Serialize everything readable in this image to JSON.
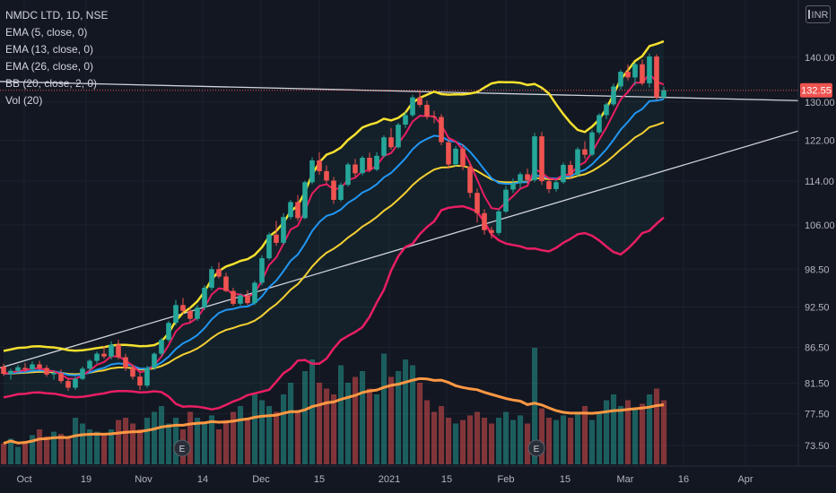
{
  "legend": {
    "symbol": "NMDC LTD, 1D, NSE",
    "ema5": "EMA (5, close, 0)",
    "ema13": "EMA (13, close, 0)",
    "ema26": "EMA (26, close, 0)",
    "bb": "BB (20, close, 2, 0)",
    "vol": "Vol (20)"
  },
  "currency": "INR",
  "colors": {
    "background": "#131722",
    "up": "#26a69a",
    "down": "#ef5350",
    "bb_upper": "#f5e12e",
    "bb_lower": "#e91e63",
    "ema5": "#e91e63",
    "ema13": "#2196f3",
    "ema26": "#f5d033",
    "vol_ma": "#ff9843",
    "trendline": "#d1d4dc",
    "last_price": "#ef5350"
  },
  "chart_data": {
    "type": "candlestick",
    "y_axis": {
      "ticks": [
        140,
        130,
        122,
        114,
        106,
        98.5,
        92.5,
        86.5,
        81.5,
        77.5,
        73.5
      ],
      "tick_labels": [
        "140.00",
        "130.00",
        "122.00",
        "114.00",
        "106.00",
        "98.50",
        "92.50",
        "86.50",
        "81.50",
        "77.50",
        "73.50"
      ],
      "scale": "log"
    },
    "x_axis": {
      "labels": [
        "Oct",
        "19",
        "Nov",
        "14",
        "Dec",
        "15",
        "2021",
        "15",
        "Feb",
        "15",
        "Mar",
        "16",
        "Apr"
      ]
    },
    "last_price": "132.55",
    "earnings_markers": [
      "E",
      "E"
    ],
    "candles": [
      [
        0,
        83.8,
        84.2,
        82.5,
        82.8
      ],
      [
        1,
        82.8,
        83.5,
        82.0,
        83.2
      ],
      [
        2,
        83.2,
        84.0,
        82.9,
        83.7
      ],
      [
        3,
        83.6,
        84.3,
        83.0,
        83.4
      ],
      [
        4,
        83.4,
        84.5,
        83.2,
        84.1
      ],
      [
        5,
        84.1,
        84.6,
        83.3,
        83.6
      ],
      [
        6,
        83.6,
        84.0,
        82.4,
        82.7
      ],
      [
        7,
        82.7,
        83.3,
        82.0,
        82.9
      ],
      [
        8,
        82.9,
        83.4,
        81.5,
        81.8
      ],
      [
        9,
        81.8,
        82.2,
        80.5,
        80.9
      ],
      [
        10,
        80.9,
        82.4,
        80.6,
        82.1
      ],
      [
        11,
        82.1,
        83.8,
        81.9,
        83.5
      ],
      [
        12,
        83.5,
        84.8,
        83.1,
        84.6
      ],
      [
        13,
        84.6,
        85.9,
        84.2,
        85.6
      ],
      [
        14,
        85.6,
        86.7,
        84.9,
        85.2
      ],
      [
        15,
        85.2,
        87.4,
        84.8,
        86.9
      ],
      [
        16,
        86.9,
        87.6,
        84.8,
        85.1
      ],
      [
        17,
        85.1,
        85.6,
        83.2,
        83.6
      ],
      [
        18,
        83.6,
        84.1,
        82.0,
        82.4
      ],
      [
        19,
        82.4,
        82.9,
        80.6,
        81.2
      ],
      [
        20,
        81.2,
        83.9,
        80.9,
        83.6
      ],
      [
        21,
        83.6,
        85.8,
        83.3,
        85.6
      ],
      [
        22,
        85.6,
        87.9,
        85.2,
        87.6
      ],
      [
        23,
        87.6,
        90.4,
        87.3,
        90.1
      ],
      [
        24,
        90.1,
        93.6,
        89.7,
        92.8
      ],
      [
        25,
        92.8,
        93.9,
        91.4,
        91.9
      ],
      [
        26,
        91.9,
        92.4,
        90.2,
        90.7
      ],
      [
        27,
        90.7,
        92.8,
        90.4,
        92.4
      ],
      [
        28,
        92.4,
        95.9,
        92.0,
        95.5
      ],
      [
        29,
        95.5,
        99.0,
        95.1,
        98.5
      ],
      [
        30,
        98.5,
        99.6,
        97.0,
        97.3
      ],
      [
        31,
        97.3,
        97.9,
        94.8,
        95.0
      ],
      [
        32,
        95.0,
        95.5,
        92.7,
        93.0
      ],
      [
        33,
        93.0,
        94.6,
        92.7,
        94.3
      ],
      [
        34,
        94.3,
        95.1,
        92.8,
        93.1
      ],
      [
        35,
        93.1,
        96.6,
        92.8,
        96.3
      ],
      [
        36,
        96.3,
        100.8,
        95.9,
        100.3
      ],
      [
        37,
        100.3,
        104.7,
        100.0,
        104.3
      ],
      [
        38,
        104.3,
        106.7,
        102.4,
        102.9
      ],
      [
        39,
        102.9,
        108.1,
        102.6,
        107.4
      ],
      [
        40,
        107.4,
        110.5,
        107.0,
        110.1
      ],
      [
        41,
        110.1,
        111.4,
        106.7,
        107.2
      ],
      [
        42,
        107.2,
        114.1,
        107.0,
        113.8
      ],
      [
        43,
        113.8,
        118.6,
        113.4,
        118.0
      ],
      [
        44,
        118.0,
        119.6,
        115.2,
        115.9
      ],
      [
        45,
        115.9,
        117.0,
        113.6,
        114.1
      ],
      [
        46,
        114.1,
        114.8,
        109.8,
        110.5
      ],
      [
        47,
        110.5,
        113.7,
        110.2,
        113.3
      ],
      [
        48,
        113.3,
        117.6,
        113.0,
        117.2
      ],
      [
        49,
        117.2,
        118.3,
        114.8,
        115.5
      ],
      [
        50,
        115.5,
        118.9,
        115.1,
        118.5
      ],
      [
        51,
        118.5,
        119.5,
        115.7,
        116.2
      ],
      [
        52,
        116.2,
        119.6,
        115.9,
        118.9
      ],
      [
        53,
        118.9,
        123.0,
        118.5,
        122.6
      ],
      [
        54,
        122.6,
        124.5,
        120.1,
        120.6
      ],
      [
        55,
        120.6,
        125.6,
        120.3,
        125.2
      ],
      [
        56,
        125.2,
        127.9,
        124.5,
        127.2
      ],
      [
        57,
        127.2,
        131.6,
        126.8,
        131.0
      ],
      [
        58,
        131.0,
        132.6,
        128.9,
        129.4
      ],
      [
        59,
        129.4,
        130.3,
        126.3,
        126.9
      ],
      [
        60,
        126.9,
        128.1,
        125.5,
        126.8
      ],
      [
        61,
        126.8,
        127.4,
        121.0,
        121.6
      ],
      [
        62,
        121.6,
        122.3,
        116.4,
        117.2
      ],
      [
        63,
        117.2,
        120.8,
        116.8,
        120.3
      ],
      [
        64,
        120.3,
        121.2,
        116.1,
        116.8
      ],
      [
        65,
        116.8,
        117.4,
        110.9,
        111.8
      ],
      [
        66,
        111.8,
        112.6,
        106.4,
        108.1
      ],
      [
        67,
        108.1,
        108.8,
        104.3,
        105.1
      ],
      [
        68,
        105.1,
        105.7,
        103.6,
        104.6
      ],
      [
        69,
        104.6,
        108.8,
        104.2,
        108.4
      ],
      [
        70,
        108.4,
        113.1,
        108.1,
        112.4
      ],
      [
        71,
        112.4,
        114.5,
        111.8,
        113.6
      ],
      [
        72,
        113.6,
        115.7,
        112.7,
        115.3
      ],
      [
        73,
        115.3,
        116.4,
        113.5,
        114.2
      ],
      [
        74,
        114.2,
        123.5,
        113.8,
        122.8
      ],
      [
        75,
        122.8,
        123.7,
        113.3,
        114.0
      ],
      [
        76,
        114.0,
        114.6,
        111.8,
        112.5
      ],
      [
        77,
        112.5,
        114.2,
        112.0,
        113.8
      ],
      [
        78,
        113.8,
        117.6,
        113.5,
        117.1
      ],
      [
        79,
        117.1,
        117.9,
        114.4,
        115.2
      ],
      [
        80,
        115.2,
        120.6,
        114.9,
        120.2
      ],
      [
        81,
        120.2,
        121.8,
        118.3,
        119.1
      ],
      [
        82,
        119.1,
        124.1,
        118.8,
        123.6
      ],
      [
        83,
        123.6,
        127.6,
        123.2,
        127.2
      ],
      [
        84,
        127.2,
        129.9,
        126.4,
        129.5
      ],
      [
        85,
        129.5,
        134.0,
        129.1,
        133.4
      ],
      [
        86,
        133.4,
        137.2,
        132.7,
        136.7
      ],
      [
        87,
        136.7,
        138.4,
        134.7,
        135.4
      ],
      [
        88,
        135.4,
        138.9,
        133.6,
        138.4
      ],
      [
        89,
        138.4,
        139.5,
        133.6,
        134.1
      ],
      [
        90,
        134.1,
        140.9,
        133.2,
        140.2
      ],
      [
        91,
        140.2,
        140.7,
        130.4,
        131.0
      ],
      [
        92,
        131.0,
        133.4,
        130.6,
        132.55
      ]
    ],
    "volume": [
      18,
      22,
      15,
      20,
      25,
      30,
      24,
      28,
      26,
      22,
      40,
      35,
      30,
      28,
      25,
      30,
      38,
      40,
      35,
      30,
      40,
      45,
      50,
      35,
      40,
      30,
      45,
      40,
      35,
      42,
      30,
      38,
      45,
      50,
      40,
      60,
      55,
      50,
      45,
      60,
      70,
      45,
      80,
      90,
      70,
      65,
      60,
      85,
      70,
      75,
      80,
      65,
      60,
      95,
      75,
      80,
      90,
      85,
      70,
      55,
      45,
      50,
      40,
      35,
      38,
      42,
      45,
      40,
      35,
      40,
      45,
      38,
      42,
      35,
      100,
      48,
      40,
      38,
      42,
      40,
      45,
      50,
      38,
      45,
      55,
      60,
      50,
      55,
      48,
      52,
      60,
      65,
      55
    ],
    "volume_up": [
      false,
      true,
      true,
      false,
      true,
      false,
      false,
      true,
      false,
      false,
      true,
      true,
      true,
      true,
      false,
      true,
      false,
      false,
      false,
      false,
      true,
      true,
      true,
      true,
      true,
      false,
      false,
      true,
      true,
      true,
      false,
      false,
      false,
      true,
      false,
      true,
      true,
      true,
      false,
      true,
      true,
      false,
      true,
      true,
      false,
      false,
      false,
      true,
      true,
      false,
      true,
      false,
      true,
      true,
      false,
      true,
      true,
      true,
      false,
      false,
      false,
      false,
      false,
      true,
      false,
      false,
      false,
      false,
      false,
      true,
      true,
      true,
      true,
      false,
      true,
      false,
      false,
      true,
      true,
      false,
      true,
      false,
      true,
      true,
      true,
      true,
      true,
      false,
      true,
      false,
      true,
      false,
      false
    ]
  }
}
